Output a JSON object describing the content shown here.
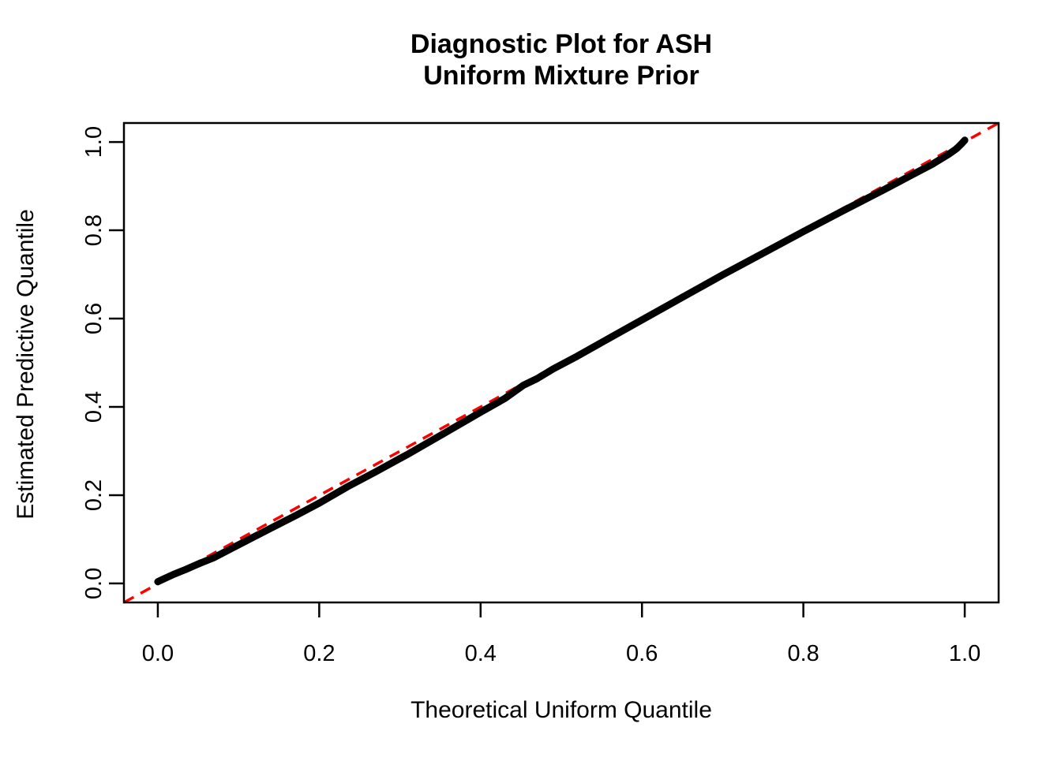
{
  "chart_data": {
    "type": "line",
    "title_line1": "Diagnostic Plot for ASH",
    "title_line2": "Uniform Mixture Prior",
    "xlabel": "Theoretical Uniform Quantile",
    "ylabel": "Estimated Predictive Quantile",
    "xlim": [
      -0.042,
      1.042
    ],
    "ylim": [
      -0.043,
      1.043
    ],
    "grid": false,
    "legend": false,
    "frame": true,
    "colors": {
      "curve": "#000000",
      "reference_line": "#FF0000",
      "axis": "#000000",
      "background": "#FFFFFF"
    },
    "x_ticks": {
      "values": [
        0.0,
        0.2,
        0.4,
        0.6,
        0.8,
        1.0
      ],
      "labels": [
        "0.0",
        "0.2",
        "0.4",
        "0.6",
        "0.8",
        "1.0"
      ]
    },
    "y_ticks": {
      "values": [
        0.0,
        0.2,
        0.4,
        0.6,
        0.8,
        1.0
      ],
      "labels": [
        "0.0",
        "0.2",
        "0.4",
        "0.6",
        "0.8",
        "1.0"
      ]
    },
    "series": [
      {
        "name": "estimated-predictive-quantile-curve",
        "color": "#000000",
        "line_width": 9,
        "points": [
          [
            0.0,
            0.004
          ],
          [
            0.008,
            0.011
          ],
          [
            0.02,
            0.021
          ],
          [
            0.035,
            0.032
          ],
          [
            0.05,
            0.044
          ],
          [
            0.07,
            0.059
          ],
          [
            0.09,
            0.078
          ],
          [
            0.11,
            0.097
          ],
          [
            0.14,
            0.125
          ],
          [
            0.17,
            0.153
          ],
          [
            0.2,
            0.182
          ],
          [
            0.235,
            0.219
          ],
          [
            0.27,
            0.253
          ],
          [
            0.31,
            0.293
          ],
          [
            0.35,
            0.335
          ],
          [
            0.4,
            0.388
          ],
          [
            0.43,
            0.419
          ],
          [
            0.453,
            0.449
          ],
          [
            0.47,
            0.464
          ],
          [
            0.49,
            0.486
          ],
          [
            0.52,
            0.515
          ],
          [
            0.56,
            0.556
          ],
          [
            0.6,
            0.597
          ],
          [
            0.65,
            0.648
          ],
          [
            0.7,
            0.699
          ],
          [
            0.75,
            0.748
          ],
          [
            0.8,
            0.797
          ],
          [
            0.85,
            0.845
          ],
          [
            0.9,
            0.892
          ],
          [
            0.93,
            0.921
          ],
          [
            0.96,
            0.95
          ],
          [
            0.98,
            0.972
          ],
          [
            0.99,
            0.985
          ],
          [
            0.996,
            0.996
          ],
          [
            1.0,
            1.004
          ]
        ]
      }
    ],
    "reference_line": {
      "name": "identity-line",
      "equation": "y = x",
      "color": "#FF0000",
      "style": "dashed",
      "x1": -0.042,
      "y1": -0.043,
      "x2": 1.042,
      "y2": 1.043
    }
  }
}
